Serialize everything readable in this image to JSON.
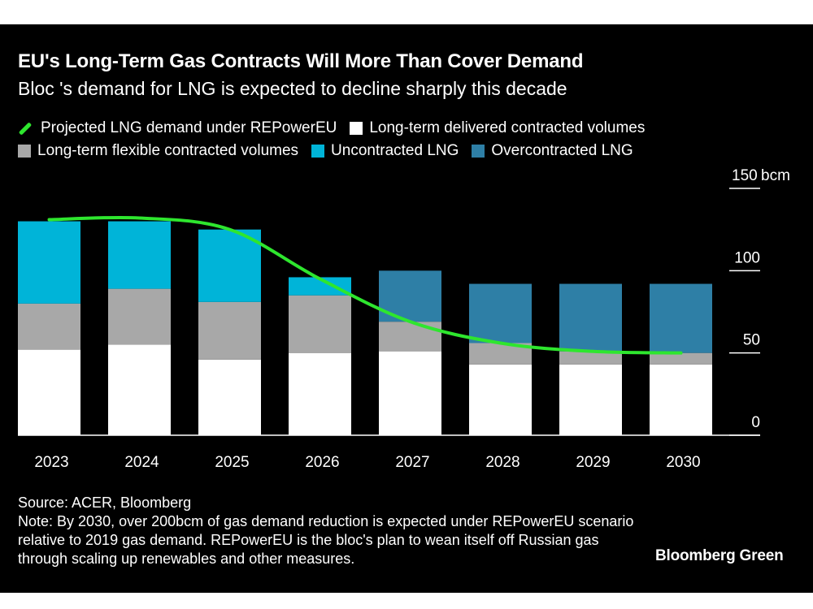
{
  "header": {
    "title": "EU's Long-Term Gas Contracts Will More Than Cover Demand",
    "subtitle": "Bloc 's demand for LNG is expected to decline sharply this decade"
  },
  "legend": [
    {
      "label": "Projected LNG demand under REPowerEU",
      "color": "#2ee62e",
      "shape": "line"
    },
    {
      "label": "Long-term delivered contracted volumes",
      "color": "#ffffff",
      "shape": "square"
    },
    {
      "label": "Long-term flexible contracted volumes",
      "color": "#a8a8a8",
      "shape": "square"
    },
    {
      "label": "Uncontracted LNG",
      "color": "#00b4d8",
      "shape": "square"
    },
    {
      "label": "Overcontracted LNG",
      "color": "#2e7fa6",
      "shape": "square"
    }
  ],
  "chart_data": {
    "type": "bar",
    "stacked": true,
    "categories": [
      "2023",
      "2024",
      "2025",
      "2026",
      "2027",
      "2028",
      "2029",
      "2030"
    ],
    "ylim": [
      0,
      150
    ],
    "yticks": [
      {
        "value": 0,
        "label": "0"
      },
      {
        "value": 50,
        "label": "50"
      },
      {
        "value": 100,
        "label": "100"
      },
      {
        "value": 150,
        "label": "150"
      }
    ],
    "yunit": "bcm",
    "series": [
      {
        "name": "Long-term delivered contracted volumes",
        "color": "#ffffff",
        "values": [
          52,
          55,
          46,
          50,
          51,
          43,
          43,
          43
        ]
      },
      {
        "name": "Long-term flexible contracted volumes",
        "color": "#a8a8a8",
        "values": [
          28,
          34,
          35,
          35,
          18,
          13,
          8,
          7
        ]
      },
      {
        "name": "Uncontracted LNG",
        "color": "#00b4d8",
        "values": [
          50,
          41,
          44,
          11,
          0,
          0,
          0,
          0
        ]
      },
      {
        "name": "Overcontracted LNG",
        "color": "#2e7fa6",
        "values": [
          0,
          0,
          0,
          0,
          31,
          36,
          41,
          42
        ]
      }
    ],
    "line": {
      "name": "Projected LNG demand under REPowerEU",
      "color": "#2ee62e",
      "values": [
        131,
        132,
        125,
        95,
        69,
        56,
        51,
        50
      ]
    }
  },
  "footer": {
    "source": "Source: ACER, Bloomberg",
    "note": "Note: By 2030, over 200bcm of gas demand reduction is expected under REPowerEU scenario relative to 2019 gas demand. REPowerEU is the bloc's plan to wean itself off Russian gas through scaling up renewables and other measures.",
    "brand": "Bloomberg Green"
  }
}
